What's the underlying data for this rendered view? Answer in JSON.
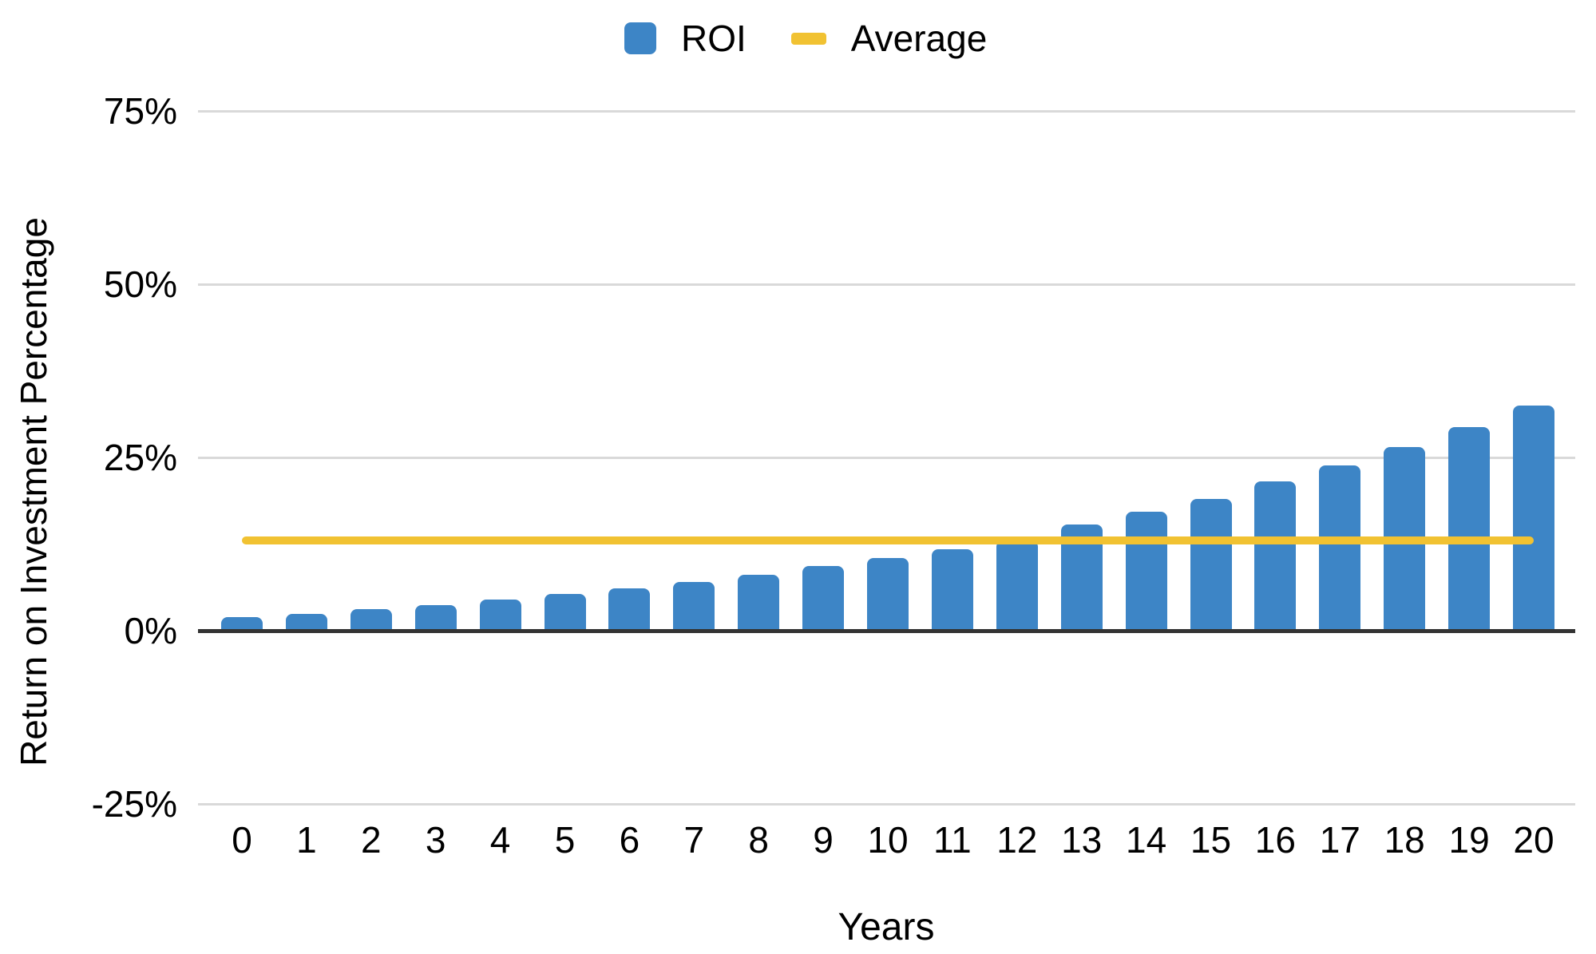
{
  "chart_data": {
    "type": "bar",
    "title": "",
    "xlabel": "Years",
    "ylabel": "Return on Investment Percentage",
    "categories": [
      "0",
      "1",
      "2",
      "3",
      "4",
      "5",
      "6",
      "7",
      "8",
      "9",
      "10",
      "11",
      "12",
      "13",
      "14",
      "15",
      "16",
      "17",
      "18",
      "19",
      "20"
    ],
    "series": [
      {
        "name": "ROI",
        "type": "bar",
        "color": "#3d85c6",
        "values": [
          2,
          2.4,
          3.1,
          3.7,
          4.5,
          5.3,
          6.1,
          7,
          8.1,
          9.3,
          10.5,
          11.7,
          13,
          15.3,
          17.2,
          19,
          21.5,
          23.8,
          26.5,
          29.4,
          32.5
        ]
      },
      {
        "name": "Average",
        "type": "line",
        "color": "#f1c232",
        "value": 13
      }
    ],
    "ylim": [
      -25,
      75
    ],
    "y_ticks": [
      {
        "label": "75%",
        "value": 75
      },
      {
        "label": "50%",
        "value": 50
      },
      {
        "label": "25%",
        "value": 25
      },
      {
        "label": "0%",
        "value": 0
      },
      {
        "label": "-25%",
        "value": -25
      }
    ],
    "grid": true,
    "legend_position": "top",
    "colors": {
      "grid": "#d9d9d9",
      "axis": "#333333",
      "text": "#000000",
      "background": "#ffffff"
    }
  }
}
